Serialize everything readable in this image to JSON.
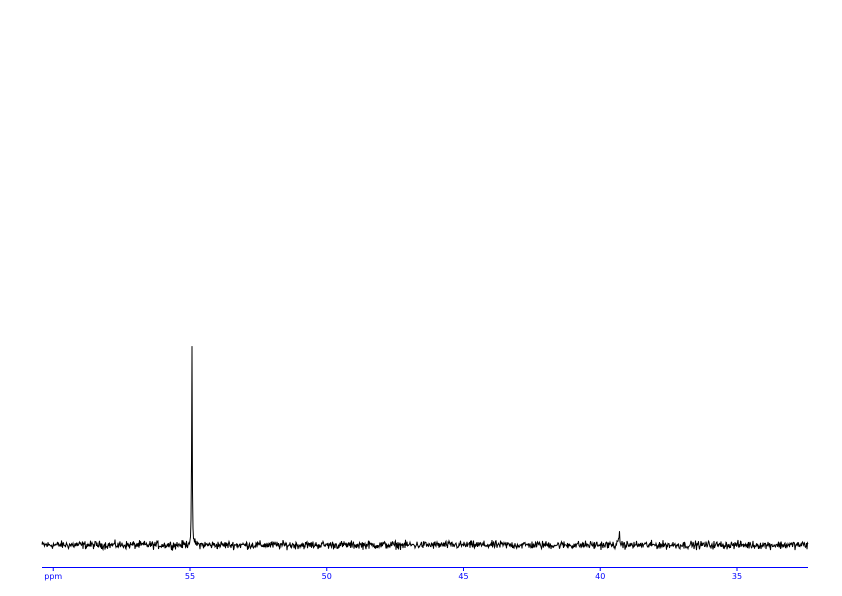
{
  "chart_data": {
    "type": "line",
    "title": "",
    "xlabel": "ppm",
    "ylabel": "",
    "x_reversed": true,
    "xlim": [
      60.5,
      32.3
    ],
    "x_ticks": [
      {
        "value": 60,
        "label": "ppm"
      },
      {
        "value": 55,
        "label": "55"
      },
      {
        "value": 50,
        "label": "50"
      },
      {
        "value": 45,
        "label": "45"
      },
      {
        "value": 40,
        "label": "40"
      },
      {
        "value": 35,
        "label": "35"
      }
    ],
    "ylim": [
      -5,
      110
    ],
    "peaks": [
      {
        "ppm": 54.93,
        "intensity": 100
      },
      {
        "ppm": 39.3,
        "intensity": 9
      }
    ],
    "noise_level": 1.2,
    "grid": false,
    "colors": {
      "trace": "#000000",
      "axis": "#0000ff"
    }
  }
}
